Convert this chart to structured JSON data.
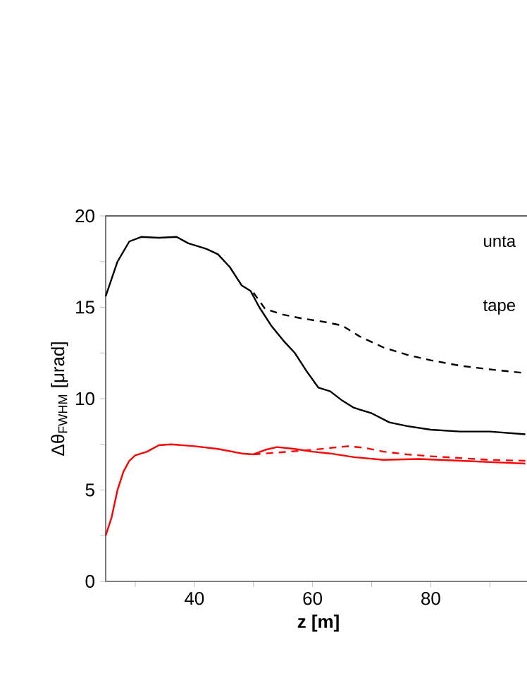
{
  "chart_data": {
    "type": "line",
    "xlabel": "z [m]",
    "ylabel": "Δθ$_{FWHM}$  [μrad]",
    "xlim": [
      25,
      97
    ],
    "ylim": [
      0,
      20
    ],
    "xticks": [
      {
        "value": 30,
        "label": null
      },
      40,
      {
        "value": 50,
        "label": null
      },
      60,
      {
        "value": 70,
        "label": null
      },
      80,
      {
        "value": 90,
        "label": null
      }
    ],
    "yticks": [
      0,
      {
        "value": 2.5,
        "label": null
      },
      5,
      {
        "value": 7.5,
        "label": null
      },
      10,
      {
        "value": 12.5,
        "label": null
      },
      15,
      {
        "value": 17.5,
        "label": null
      },
      20
    ],
    "grid": false,
    "marker": "none",
    "annotations": [
      "unta",
      "tape"
    ],
    "series": [
      {
        "color": "#000000",
        "line_style": "solid",
        "x": [
          25,
          27,
          29,
          31,
          34,
          37,
          39,
          42,
          44,
          46,
          48,
          49.5,
          51,
          53,
          55,
          57,
          59,
          61,
          63,
          65,
          67,
          70,
          73,
          76,
          80,
          85,
          90,
          96
        ],
        "values": [
          15.6,
          17.5,
          18.6,
          18.85,
          18.8,
          18.85,
          18.5,
          18.2,
          17.9,
          17.2,
          16.2,
          15.9,
          15.0,
          14.0,
          13.2,
          12.5,
          11.5,
          10.6,
          10.4,
          9.9,
          9.5,
          9.2,
          8.7,
          8.5,
          8.3,
          8.2,
          8.2,
          8.05
        ]
      },
      {
        "color": "#ff0000",
        "line_style": "solid",
        "x": [
          25,
          26,
          27,
          28,
          29,
          30,
          32,
          34,
          36,
          40,
          44,
          48,
          50,
          52,
          54,
          57,
          60,
          63,
          67,
          72,
          78,
          85,
          92,
          96
        ],
        "values": [
          2.5,
          3.5,
          5.0,
          6.0,
          6.6,
          6.9,
          7.1,
          7.45,
          7.5,
          7.4,
          7.25,
          7.0,
          6.95,
          7.2,
          7.35,
          7.25,
          7.1,
          7.0,
          6.8,
          6.65,
          6.7,
          6.6,
          6.5,
          6.45
        ]
      },
      {
        "color": "#000000",
        "line_style": "dashed",
        "x": [
          50,
          52,
          55,
          58,
          62,
          65,
          68,
          72,
          76,
          80,
          85,
          90,
          96
        ],
        "values": [
          15.8,
          14.9,
          14.6,
          14.4,
          14.2,
          14.0,
          13.4,
          12.8,
          12.4,
          12.1,
          11.8,
          11.6,
          11.4
        ]
      },
      {
        "color": "#ff0000",
        "line_style": "dashed",
        "x": [
          50,
          52,
          56,
          60,
          63,
          66,
          69,
          72,
          76,
          80,
          85,
          90,
          96
        ],
        "values": [
          6.95,
          7.0,
          7.1,
          7.2,
          7.3,
          7.4,
          7.3,
          7.1,
          6.95,
          6.85,
          6.75,
          6.65,
          6.6
        ]
      }
    ]
  }
}
